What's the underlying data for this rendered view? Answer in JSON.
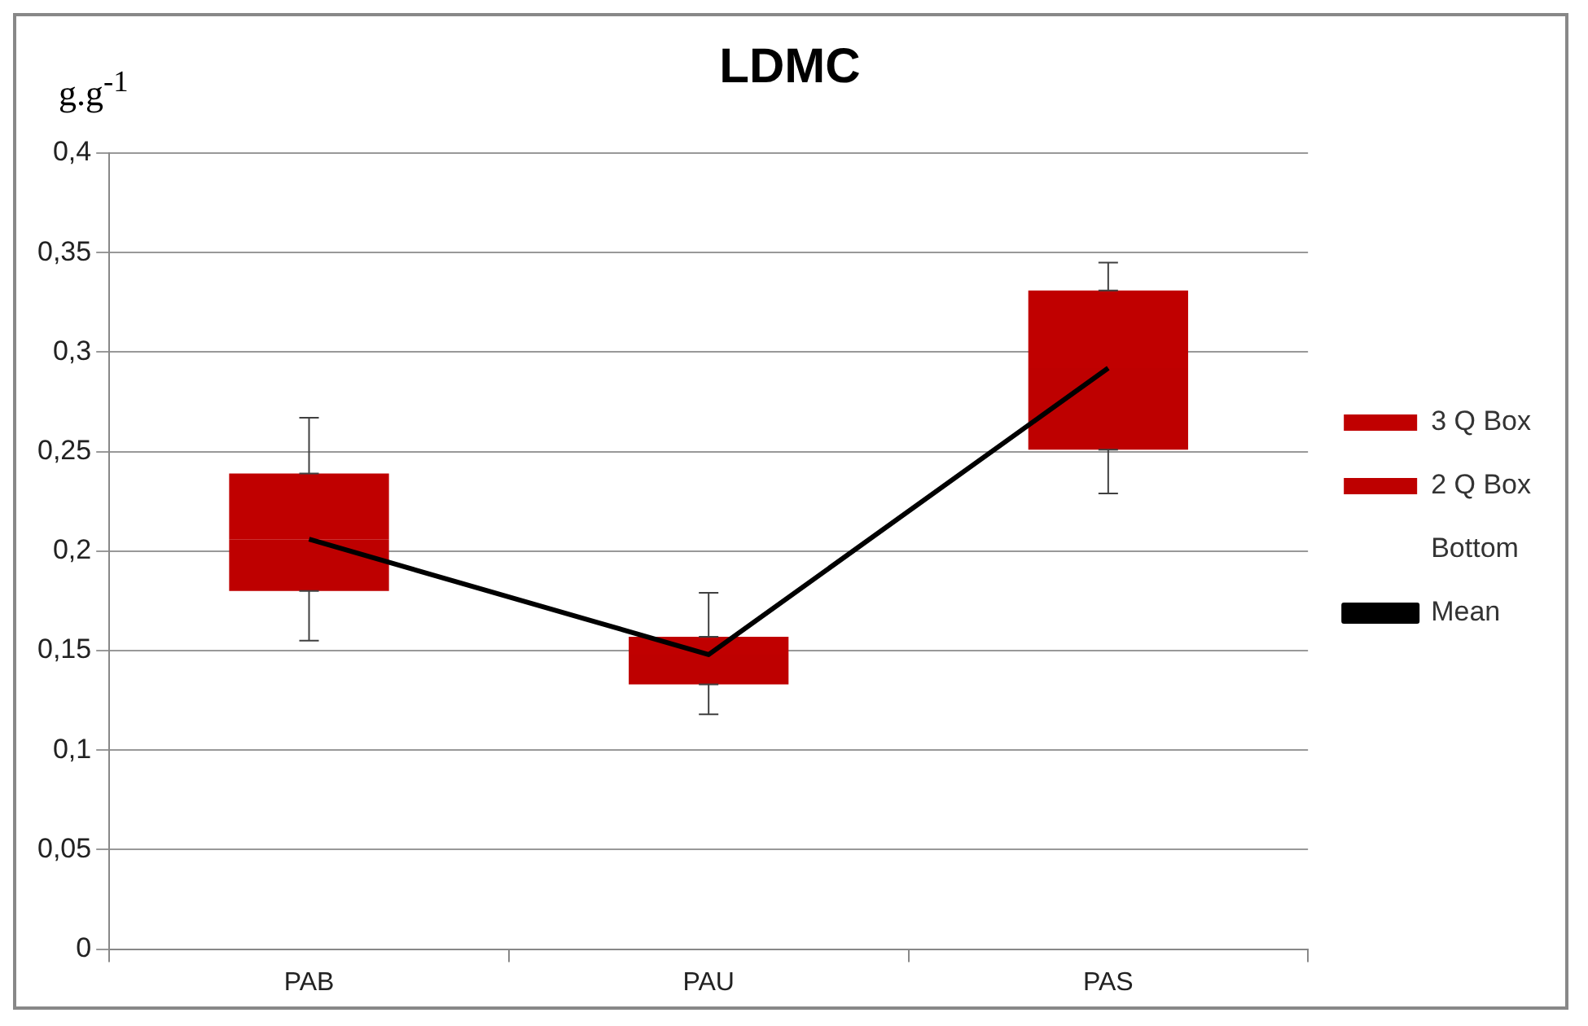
{
  "chart_data": {
    "type": "bar",
    "title": "LDMC",
    "ylabel": "g.g$^{-1}$",
    "categories": [
      "PAB",
      "PAU",
      "PAS"
    ],
    "series": [
      {
        "name": "Bottom",
        "values": [
          null,
          null,
          null
        ]
      },
      {
        "name": "2 Q Box",
        "color": "#be0000",
        "base": [
          0.18,
          0.133,
          0.251
        ],
        "values": [
          0.026,
          0.015,
          0.041
        ],
        "errors": [
          [
            0.155,
            0.18
          ],
          [
            0.118,
            0.133
          ],
          [
            0.229,
            0.251
          ]
        ]
      },
      {
        "name": "3 Q Box",
        "color": "#c00000",
        "base": [
          0.206,
          0.148,
          0.292
        ],
        "values": [
          0.033,
          0.009,
          0.039
        ],
        "errors": [
          [
            0.239,
            0.267
          ],
          [
            0.157,
            0.179
          ],
          [
            0.331,
            0.345
          ]
        ]
      },
      {
        "name": "Mean",
        "type": "line",
        "color": "#000000",
        "marker": "none",
        "values": [
          0.206,
          0.148,
          0.292
        ]
      }
    ],
    "ylim": [
      0,
      0.4
    ],
    "yticks": [
      0,
      {
        "value": 0.05,
        "label": "0,05"
      },
      {
        "value": 0.1,
        "label": "0,1"
      },
      {
        "value": 0.15,
        "label": "0,15"
      },
      {
        "value": 0.2,
        "label": "0,2"
      },
      {
        "value": 0.25,
        "label": "0,25"
      },
      {
        "value": 0.3,
        "label": "0,3"
      },
      {
        "value": 0.35,
        "label": "0,35"
      },
      {
        "value": 0.4,
        "label": "0,4"
      }
    ],
    "grid": "y",
    "legend": "right"
  }
}
